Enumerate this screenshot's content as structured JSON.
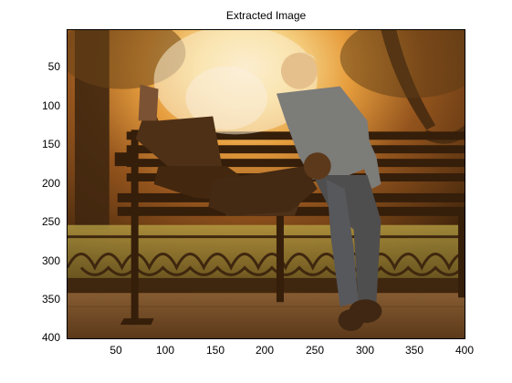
{
  "figure": {
    "title": "Extracted Image"
  },
  "axes": {
    "x_ticks": [
      "50",
      "100",
      "150",
      "200",
      "250",
      "300",
      "350",
      "400"
    ],
    "y_ticks": [
      "50",
      "100",
      "150",
      "200",
      "250",
      "300",
      "350",
      "400"
    ],
    "x_range": [
      1,
      400
    ],
    "y_range": [
      1,
      400
    ]
  },
  "image": {
    "description_icon": "photo-couple-on-park-bench-sunset"
  },
  "colors": {
    "sun_glow": "#fff4c8",
    "warm_orange": "#e08a2a",
    "bench_dark": "#1e0f06",
    "ground": "#6b4a30"
  }
}
